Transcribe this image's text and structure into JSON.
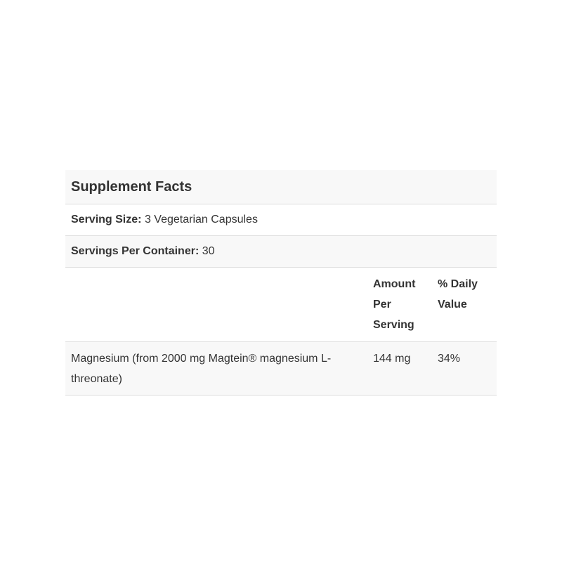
{
  "title": "Supplement Facts",
  "serving_size": {
    "label": "Serving Size:",
    "value": "3 Vegetarian Capsules"
  },
  "servings_per_container": {
    "label": "Servings Per Container:",
    "value": "30"
  },
  "columns": {
    "amount": "Amount Per Serving",
    "daily_value": "% Daily Value"
  },
  "items": [
    {
      "name": "Magnesium (from 2000 mg Magtein® magnesium L-threonate)",
      "amount": "144 mg",
      "daily_value": "34%"
    }
  ]
}
